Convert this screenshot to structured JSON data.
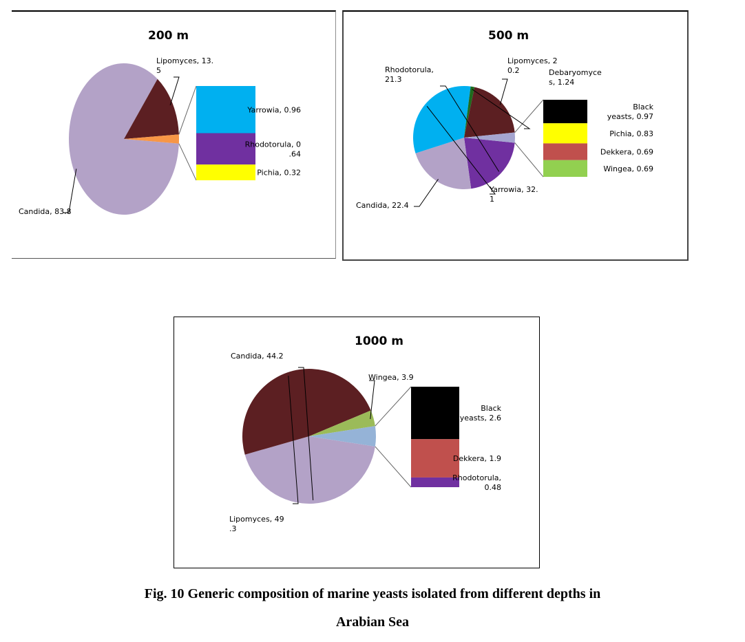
{
  "caption": {
    "line1": "Fig. 10 Generic composition of marine yeasts isolated from different depths in",
    "line2": "Arabian Sea"
  },
  "chart_data": [
    {
      "type": "pie",
      "subtype": "pie-of-pie",
      "title": "200 m",
      "main_slices": [
        {
          "label": [
            "Lipomyces, 13.",
            "5"
          ],
          "value": 13.5,
          "color": "#5c1f22"
        },
        {
          "label": [
            "Candida, 83.8"
          ],
          "value": 83.8,
          "color": "#b3a2c7"
        }
      ],
      "other_slice_color": "#f79646",
      "secondary_stack": [
        {
          "label": [
            "Yarrowia, 0.96"
          ],
          "value": 0.96,
          "color": "#00b0f0"
        },
        {
          "label": [
            "Rhodotorula, 0",
            ".64"
          ],
          "value": 0.64,
          "color": "#7030a0"
        },
        {
          "label": [
            "Pichia, 0.32"
          ],
          "value": 0.32,
          "color": "#ffff00"
        }
      ]
    },
    {
      "type": "pie",
      "subtype": "pie-of-pie",
      "title": "500 m",
      "main_slices": [
        {
          "label": [
            "Lipomyces, 2",
            "0.2"
          ],
          "value": 20.2,
          "color": "#5c1f22"
        },
        {
          "label": [
            "Debaryomyce",
            "s, 1.24"
          ],
          "value": 1.24,
          "color": "#1e6b1e"
        },
        {
          "label": [
            "Yarrowia, 32.",
            "1"
          ],
          "value": 32.1,
          "color": "#00b0f0"
        },
        {
          "label": [
            "Candida, 22.4"
          ],
          "value": 22.4,
          "color": "#b3a2c7"
        },
        {
          "label": [
            "Rhodotorula,",
            "21.3"
          ],
          "value": 21.3,
          "color": "#7030a0"
        }
      ],
      "other_slice_color": "#a5a5d0",
      "secondary_stack": [
        {
          "label": [
            "Black",
            "yeasts, 0.97"
          ],
          "value": 0.97,
          "color": "#000000"
        },
        {
          "label": [
            "Pichia, 0.83"
          ],
          "value": 0.83,
          "color": "#ffff00"
        },
        {
          "label": [
            "Dekkera, 0.69"
          ],
          "value": 0.69,
          "color": "#c0504d"
        },
        {
          "label": [
            "Wingea, 0.69"
          ],
          "value": 0.69,
          "color": "#92d050"
        }
      ]
    },
    {
      "type": "pie",
      "subtype": "pie-of-pie",
      "title": "1000 m",
      "main_slices": [
        {
          "label": [
            "Wingea, 3.9"
          ],
          "value": 3.9,
          "color": "#9bbb59"
        },
        {
          "label": [
            "Lipomyces, 49",
            ".3"
          ],
          "value": 49.3,
          "color": "#5c1f22"
        },
        {
          "label": [
            "Candida, 44.2"
          ],
          "value": 44.2,
          "color": "#b3a2c7"
        }
      ],
      "other_slice_color": "#95b3d7",
      "secondary_stack": [
        {
          "label": [
            "Black",
            "yeasts, 2.6"
          ],
          "value": 2.6,
          "color": "#000000"
        },
        {
          "label": [
            "Dekkera, 1.9"
          ],
          "value": 1.9,
          "color": "#c0504d"
        },
        {
          "label": [
            "Rhodotorula,",
            "0.48"
          ],
          "value": 0.48,
          "color": "#7030a0"
        }
      ]
    }
  ]
}
